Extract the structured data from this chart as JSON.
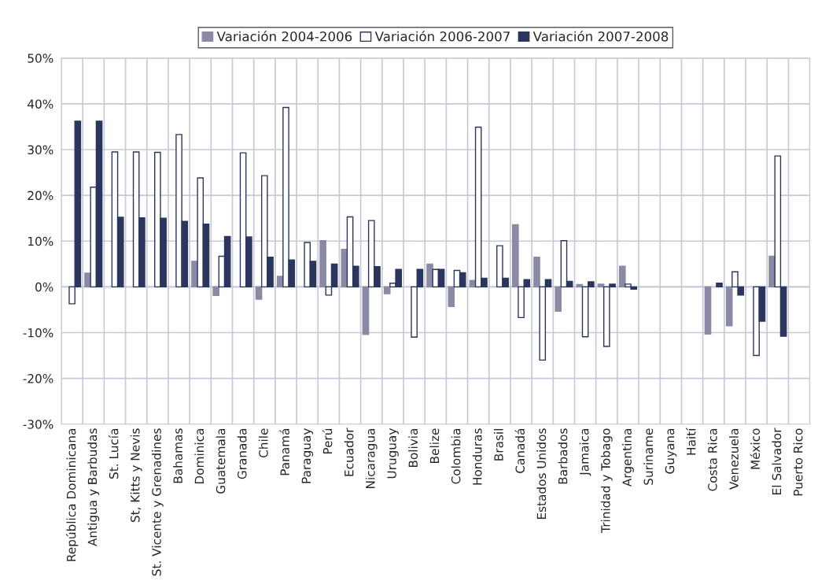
{
  "chart_data": {
    "type": "bar",
    "categories": [
      "República Dominicana",
      "Antigua y Barbudas",
      "St. Lucía",
      "St, Kitts y Nevis",
      "St. Vicente y Grenadines",
      "Bahamas",
      "Dominica",
      "Guatemala",
      "Granada",
      "Chile",
      "Panamá",
      "Paraguay",
      "Perú",
      "Ecuador",
      "Nicaragua",
      "Uruguay",
      "Bolivia",
      "Belize",
      "Colombia",
      "Honduras",
      "Brasil",
      "Canadá",
      "Estados Unidos",
      "Barbados",
      "Jamaica",
      "Trinidad y Tobago",
      "Argentina",
      "Suriname",
      "Guyana",
      "Haití",
      "Costa Rica",
      "Venezuela",
      "México",
      "El Salvador",
      "Puerto Rico"
    ],
    "series": [
      {
        "name": "Variación 2004-2006",
        "color": "#8a8aa6",
        "values": [
          null,
          3.0,
          null,
          null,
          null,
          null,
          5.6,
          -1.9,
          null,
          -2.7,
          2.3,
          null,
          10.1,
          8.2,
          -10.4,
          -1.5,
          null,
          5.0,
          -4.3,
          1.4,
          null,
          13.6,
          6.5,
          -5.3,
          0.5,
          0.6,
          4.5,
          null,
          null,
          null,
          -10.3,
          -8.5,
          null,
          6.7,
          null
        ]
      },
      {
        "name": "Variación 2006-2007",
        "color": "#ffffff",
        "values": [
          -3.7,
          21.8,
          29.5,
          29.5,
          29.4,
          33.3,
          23.8,
          6.7,
          29.3,
          24.3,
          39.2,
          9.7,
          -1.8,
          15.3,
          14.5,
          0.8,
          -11.0,
          3.8,
          3.6,
          34.9,
          9.0,
          -6.7,
          -16,
          10.1,
          -10.9,
          -13,
          0.6,
          null,
          null,
          null,
          null,
          3.3,
          -15,
          28.6,
          null
        ]
      },
      {
        "name": "Variación 2007-2008",
        "color": "#2a365e",
        "values": [
          36.2,
          36.2,
          15.2,
          15.1,
          15.0,
          14.3,
          13.7,
          11.0,
          10.9,
          6.5,
          5.9,
          5.6,
          5.0,
          4.5,
          4.4,
          3.8,
          3.8,
          3.8,
          3.1,
          1.9,
          1.9,
          1.6,
          1.6,
          1.2,
          1.1,
          0.6,
          -0.5,
          null,
          null,
          null,
          0.8,
          -1.8,
          -7.5,
          -10.8,
          null
        ]
      }
    ],
    "ylim": [
      -30,
      50
    ],
    "yticks": [
      {
        "value": -30,
        "label": "-30%"
      },
      {
        "value": -20,
        "label": "-20%"
      },
      {
        "value": -10,
        "label": "-10%"
      },
      {
        "value": 0,
        "label": "0%"
      },
      {
        "value": 10,
        "label": "10%"
      },
      {
        "value": 20,
        "label": "20%"
      },
      {
        "value": 30,
        "label": "30%"
      },
      {
        "value": 40,
        "label": "40%"
      },
      {
        "value": 50,
        "label": "50%"
      }
    ],
    "grid": true,
    "legend": "top"
  }
}
